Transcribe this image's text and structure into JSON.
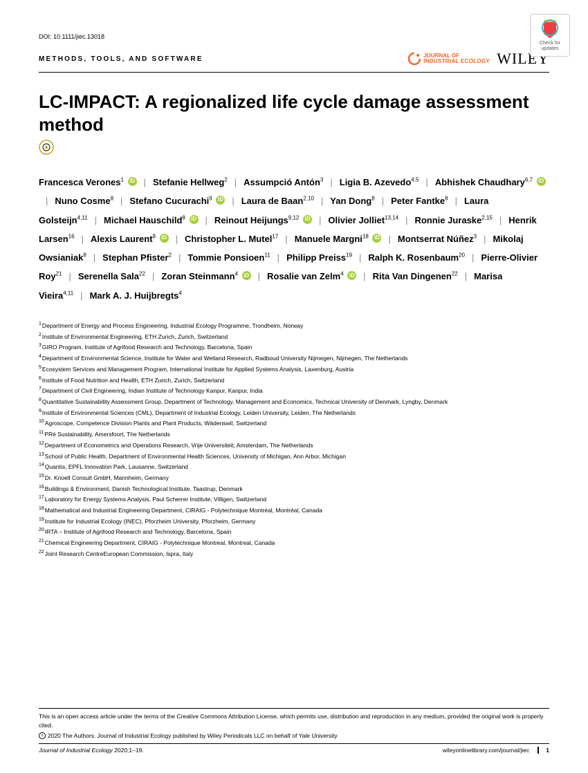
{
  "doi": "DOI: 10.1111/jiec.13018",
  "section_label": "METHODS, TOOLS, AND SOFTWARE",
  "check_updates_label": "Check for updates",
  "journal_brand_top": "JOURNAL OF",
  "journal_brand_bottom": "INDUSTRIAL ECOLOGY",
  "publisher_brand": "WILEY",
  "title": "LC-IMPACT: A regionalized life cycle damage assessment method",
  "authors": [
    {
      "name": "Francesca Verones",
      "aff": "1",
      "orcid": true
    },
    {
      "name": "Stefanie Hellweg",
      "aff": "2",
      "orcid": false
    },
    {
      "name": "Assumpció Antón",
      "aff": "3",
      "orcid": false
    },
    {
      "name": "Ligia B. Azevedo",
      "aff": "4,5",
      "orcid": false
    },
    {
      "name": "Abhishek Chaudhary",
      "aff": "6,7",
      "orcid": true
    },
    {
      "name": "Nuno Cosme",
      "aff": "8",
      "orcid": false
    },
    {
      "name": "Stefano Cucurachi",
      "aff": "9",
      "orcid": true
    },
    {
      "name": "Laura de Baan",
      "aff": "2,10",
      "orcid": false
    },
    {
      "name": "Yan Dong",
      "aff": "8",
      "orcid": false
    },
    {
      "name": "Peter Fantke",
      "aff": "8",
      "orcid": false
    },
    {
      "name": "Laura Golsteijn",
      "aff": "4,11",
      "orcid": false
    },
    {
      "name": "Michael Hauschild",
      "aff": "8",
      "orcid": true
    },
    {
      "name": "Reinout Heijungs",
      "aff": "9,12",
      "orcid": true
    },
    {
      "name": "Olivier Jolliet",
      "aff": "13,14",
      "orcid": false
    },
    {
      "name": "Ronnie Juraske",
      "aff": "2,15",
      "orcid": false
    },
    {
      "name": "Henrik Larsen",
      "aff": "16",
      "orcid": false
    },
    {
      "name": "Alexis Laurent",
      "aff": "8",
      "orcid": true
    },
    {
      "name": "Christopher L. Mutel",
      "aff": "17",
      "orcid": false
    },
    {
      "name": "Manuele Margni",
      "aff": "18",
      "orcid": true
    },
    {
      "name": "Montserrat Núñez",
      "aff": "3",
      "orcid": false
    },
    {
      "name": "Mikolaj Owsianiak",
      "aff": "8",
      "orcid": false
    },
    {
      "name": "Stephan Pfister",
      "aff": "2",
      "orcid": false
    },
    {
      "name": "Tommie Ponsioen",
      "aff": "11",
      "orcid": false
    },
    {
      "name": "Philipp Preiss",
      "aff": "19",
      "orcid": false
    },
    {
      "name": "Ralph K. Rosenbaum",
      "aff": "20",
      "orcid": false
    },
    {
      "name": "Pierre-Olivier Roy",
      "aff": "21",
      "orcid": false
    },
    {
      "name": "Serenella Sala",
      "aff": "22",
      "orcid": false
    },
    {
      "name": "Zoran Steinmann",
      "aff": "4",
      "orcid": true
    },
    {
      "name": "Rosalie van Zelm",
      "aff": "4",
      "orcid": true
    },
    {
      "name": "Rita Van Dingenen",
      "aff": "22",
      "orcid": false
    },
    {
      "name": "Marisa Vieira",
      "aff": "4,11",
      "orcid": false
    },
    {
      "name": "Mark A. J. Huijbregts",
      "aff": "4",
      "orcid": false
    }
  ],
  "affiliations": [
    {
      "n": "1",
      "text": "Department of Energy and Process Engineering, Industrial Ecology Programme, Trondheim, Norway"
    },
    {
      "n": "2",
      "text": "Institute of Environmental Engineering, ETH Zurich, Zurich, Switzerland"
    },
    {
      "n": "3",
      "text": "GIRO Program, Institute of Agrifood Research and Technology, Barcelona, Spain"
    },
    {
      "n": "4",
      "text": "Department of Environmental Science, Institute for Water and Wetland Research, Radboud University Nijmegen, Nijmegen, The Netherlands"
    },
    {
      "n": "5",
      "text": "Ecosystem Services and Management Program, International Institute for Applied Systems Analysis, Laxenburg, Austria"
    },
    {
      "n": "6",
      "text": "Institute of Food Nutrition and Health, ETH Zurich, Zurich, Switzerland"
    },
    {
      "n": "7",
      "text": "Department of Civil Engineering, Indian Institute of Technology Kanpur, Kanpur, India"
    },
    {
      "n": "8",
      "text": "Quantitative Sustainability Assessment Group, Department of Technology, Management and Economics, Technical University of Denmark, Lyngby, Denmark"
    },
    {
      "n": "9",
      "text": "Institute of Environmental Sciences (CML), Department of Industrial Ecology, Leiden University, Leiden, The Netherlands"
    },
    {
      "n": "10",
      "text": "Agroscope, Competence Division Plants and Plant Products, Wädenswil, Switzerland"
    },
    {
      "n": "11",
      "text": "PRé Sustainability, Amersfoort, The Netherlands"
    },
    {
      "n": "12",
      "text": "Department of Econometrics and Operations Research, Vrije Universiteit, Amsterdam, The Netherlands"
    },
    {
      "n": "13",
      "text": "School of Public Health, Department of Environmental Health Sciences, University of Michigan, Ann Arbor, Michigan"
    },
    {
      "n": "14",
      "text": "Quantis, EPFL Innovation Park, Lausanne, Switzerland"
    },
    {
      "n": "15",
      "text": "Dr. Knoell Consult GmbH, Mannheim, Germany"
    },
    {
      "n": "16",
      "text": "Buildings & Environment, Danish Technological Institute, Taastrup, Denmark"
    },
    {
      "n": "17",
      "text": "Laboratory for Energy Systems Analysis, Paul Scherrer Institute, Villigen, Switzerland"
    },
    {
      "n": "18",
      "text": "Mathematical and Industrial Engineering Department, CIRAIG - Polytechnique Montréal, Montréal, Canada"
    },
    {
      "n": "19",
      "text": "Institute for Industrial Ecology (INEC), Pforzheim University, Pforzheim, Germany"
    },
    {
      "n": "20",
      "text": "IRTA – Institute of Agrifood Research and Technology, Barcelona, Spain"
    },
    {
      "n": "21",
      "text": "Chemical Engineering Department, CIRAIG - Polytechnique Montreal, Montreal, Canada"
    },
    {
      "n": "22",
      "text": "Joint Research CentreEuropean Commission, Ispra, Italy"
    }
  ],
  "license_text": "This is an open access article under the terms of the Creative Commons Attribution License, which permits use, distribution and reproduction in any medium, provided the original work is properly cited.",
  "copyright_text": "2020 The Authors. Journal of Industrial Ecology published by Wiley Periodicals LLC on behalf of Yale University",
  "footer_left_italic": "Journal of Industrial Ecology",
  "footer_left_rest": " 2020;1–19.",
  "footer_link": "wileyonlinelibrary.com/journal/jiec",
  "page_number": "1",
  "colors": {
    "orcid_green": "#a6ce39",
    "orange": "#f26522",
    "crossref_red": "#ef3e42",
    "crossref_yellow": "#ffc72c",
    "crossref_blue": "#3eb1c8",
    "text": "#000000",
    "sep_gray": "#888888"
  }
}
